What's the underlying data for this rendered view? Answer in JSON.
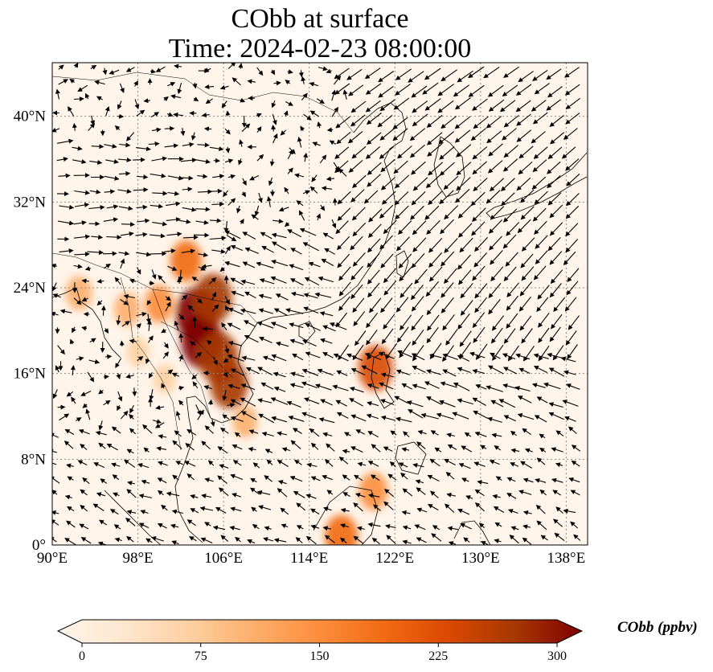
{
  "title": {
    "line1": "CObb at surface",
    "line2": "Time: 2024-02-23 08:00:00"
  },
  "map": {
    "extent": {
      "lon": [
        90,
        140
      ],
      "lat": [
        0,
        45
      ]
    },
    "lon_ticks": [
      {
        "value": 90,
        "label": "90°E"
      },
      {
        "value": 98,
        "label": "98°E"
      },
      {
        "value": 106,
        "label": "106°E"
      },
      {
        "value": 114,
        "label": "114°E"
      },
      {
        "value": 122,
        "label": "122°E"
      },
      {
        "value": 130,
        "label": "130°E"
      },
      {
        "value": 138,
        "label": "138°E"
      }
    ],
    "lat_ticks": [
      {
        "value": 0,
        "label": "0°"
      },
      {
        "value": 8,
        "label": "8°N"
      },
      {
        "value": 16,
        "label": "16°N"
      },
      {
        "value": 24,
        "label": "24°N"
      },
      {
        "value": 32,
        "label": "32°N"
      },
      {
        "value": 40,
        "label": "40°N"
      }
    ],
    "gridlines": true,
    "hotspots": [
      {
        "lon": 103.5,
        "lat": 21.5,
        "value": 300
      },
      {
        "lon": 104.0,
        "lat": 19.0,
        "value": 300
      },
      {
        "lon": 105.5,
        "lat": 17.5,
        "value": 280
      },
      {
        "lon": 106.5,
        "lat": 15.0,
        "value": 250
      },
      {
        "lon": 105.0,
        "lat": 23.0,
        "value": 260
      },
      {
        "lon": 102.5,
        "lat": 26.5,
        "value": 180
      },
      {
        "lon": 100.0,
        "lat": 22.5,
        "value": 150
      },
      {
        "lon": 97.0,
        "lat": 22.0,
        "value": 120
      },
      {
        "lon": 92.5,
        "lat": 23.5,
        "value": 120
      },
      {
        "lon": 120.2,
        "lat": 16.5,
        "value": 220
      },
      {
        "lon": 117.0,
        "lat": 0.8,
        "value": 200
      },
      {
        "lon": 120.0,
        "lat": 5.0,
        "value": 150
      },
      {
        "lon": 100.5,
        "lat": 15.5,
        "value": 80
      },
      {
        "lon": 98.0,
        "lat": 18.0,
        "value": 80
      },
      {
        "lon": 108.0,
        "lat": 11.5,
        "value": 100
      }
    ]
  },
  "colorbar": {
    "label": "CObb (ppbv)",
    "min": 0,
    "max": 300,
    "ticks": [
      {
        "value": 0,
        "label": "0"
      },
      {
        "value": 75,
        "label": "75"
      },
      {
        "value": 150,
        "label": "150"
      },
      {
        "value": 225,
        "label": "225"
      },
      {
        "value": 300,
        "label": "300"
      }
    ],
    "colors": [
      "#fff5eb",
      "#fee6ce",
      "#fdd0a2",
      "#fdae6b",
      "#fd8d3c",
      "#f16913",
      "#d94801",
      "#a63603",
      "#7f0000"
    ]
  }
}
